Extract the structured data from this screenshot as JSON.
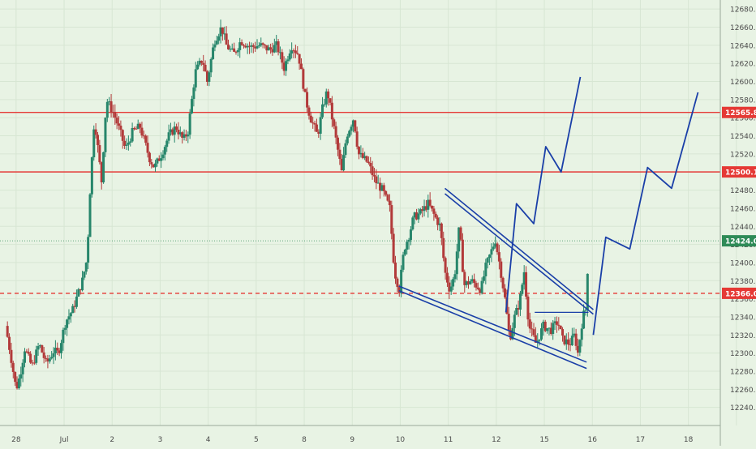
{
  "colors": {
    "background": "#e8f3e4",
    "grid": "#d7e6d3",
    "axis_text": "#4b4b4b",
    "up": "#27866b",
    "down": "#b23a3a",
    "resistance": "#e53935",
    "current": "#2e8b57",
    "drawing": "#1a3fa8"
  },
  "chart_data": {
    "type": "candlestick",
    "symbol_hint": "",
    "y_axis": {
      "min": 12220,
      "max": 12690,
      "ticks": [
        12240,
        12260,
        12280,
        12300,
        12320,
        12340,
        12360,
        12380,
        12400,
        12420,
        12440,
        12460,
        12480,
        12500,
        12520,
        12540,
        12560,
        12580,
        12600,
        12620,
        12640,
        12660,
        12680
      ],
      "tick_labels": [
        "12240.0",
        "12260.0",
        "12280.0",
        "12300.0",
        "12320.0",
        "12340.0",
        "12360.0",
        "12380.0",
        "12400.0",
        "12420.0",
        "12440.0",
        "12460.0",
        "12480.0",
        "12500.0",
        "12520.0",
        "12540.0",
        "12560.0",
        "12580.0",
        "12600.0",
        "12620.0",
        "12640.0",
        "12660.0",
        "12680.0"
      ]
    },
    "x_axis": {
      "min": 0,
      "max": 15,
      "ticks": [
        0.2,
        1.2,
        2.2,
        3.2,
        4.2,
        5.2,
        6.2,
        7.2,
        8.2,
        9.2,
        10.2,
        11.2,
        12.2,
        13.2,
        14.2,
        15.2
      ],
      "tick_labels": [
        "28",
        "Jul",
        "2",
        "3",
        "4",
        "5",
        "8",
        "9",
        "10",
        "11",
        "12",
        "15",
        "16",
        "17",
        "18",
        ""
      ]
    },
    "grid": true,
    "horizontal_levels": [
      {
        "value": 12565.8,
        "label": "12565.8",
        "style": "solid",
        "role": "resistance"
      },
      {
        "value": 12500.1,
        "label": "12500.1",
        "style": "solid",
        "role": "resistance"
      },
      {
        "value": 12366.0,
        "label": "12366.0",
        "style": "dashed",
        "role": "resistance"
      },
      {
        "value": 12424.0,
        "label": "12424.0",
        "style": "dotted",
        "role": "current"
      }
    ],
    "price_series": [
      {
        "t": 0.0,
        "p": 12330
      },
      {
        "t": 0.1,
        "p": 12300
      },
      {
        "t": 0.22,
        "p": 12260
      },
      {
        "t": 0.3,
        "p": 12275
      },
      {
        "t": 0.4,
        "p": 12305
      },
      {
        "t": 0.55,
        "p": 12285
      },
      {
        "t": 0.7,
        "p": 12310
      },
      {
        "t": 0.85,
        "p": 12288
      },
      {
        "t": 1.0,
        "p": 12302
      },
      {
        "t": 1.1,
        "p": 12300
      },
      {
        "t": 1.25,
        "p": 12335
      },
      {
        "t": 1.4,
        "p": 12348
      },
      {
        "t": 1.6,
        "p": 12380
      },
      {
        "t": 1.7,
        "p": 12405
      },
      {
        "t": 1.75,
        "p": 12470
      },
      {
        "t": 1.85,
        "p": 12560
      },
      {
        "t": 2.0,
        "p": 12490
      },
      {
        "t": 2.1,
        "p": 12580
      },
      {
        "t": 2.25,
        "p": 12565
      },
      {
        "t": 2.35,
        "p": 12550
      },
      {
        "t": 2.5,
        "p": 12525
      },
      {
        "t": 2.65,
        "p": 12545
      },
      {
        "t": 2.8,
        "p": 12550
      },
      {
        "t": 3.0,
        "p": 12515
      },
      {
        "t": 3.1,
        "p": 12505
      },
      {
        "t": 3.25,
        "p": 12520
      },
      {
        "t": 3.4,
        "p": 12540
      },
      {
        "t": 3.55,
        "p": 12550
      },
      {
        "t": 3.7,
        "p": 12535
      },
      {
        "t": 3.8,
        "p": 12545
      },
      {
        "t": 3.95,
        "p": 12610
      },
      {
        "t": 4.1,
        "p": 12625
      },
      {
        "t": 4.2,
        "p": 12600
      },
      {
        "t": 4.35,
        "p": 12645
      },
      {
        "t": 4.5,
        "p": 12660
      },
      {
        "t": 4.6,
        "p": 12640
      },
      {
        "t": 4.75,
        "p": 12630
      },
      {
        "t": 4.9,
        "p": 12645
      },
      {
        "t": 5.1,
        "p": 12638
      },
      {
        "t": 5.3,
        "p": 12640
      },
      {
        "t": 5.5,
        "p": 12635
      },
      {
        "t": 5.65,
        "p": 12640
      },
      {
        "t": 5.8,
        "p": 12615
      },
      {
        "t": 5.95,
        "p": 12640
      },
      {
        "t": 6.1,
        "p": 12630
      },
      {
        "t": 6.25,
        "p": 12580
      },
      {
        "t": 6.35,
        "p": 12560
      },
      {
        "t": 6.5,
        "p": 12540
      },
      {
        "t": 6.6,
        "p": 12570
      },
      {
        "t": 6.7,
        "p": 12590
      },
      {
        "t": 6.85,
        "p": 12545
      },
      {
        "t": 7.0,
        "p": 12500
      },
      {
        "t": 7.1,
        "p": 12540
      },
      {
        "t": 7.25,
        "p": 12560
      },
      {
        "t": 7.35,
        "p": 12520
      },
      {
        "t": 7.55,
        "p": 12510
      },
      {
        "t": 7.7,
        "p": 12490
      },
      {
        "t": 7.85,
        "p": 12480
      },
      {
        "t": 8.0,
        "p": 12460
      },
      {
        "t": 8.1,
        "p": 12390
      },
      {
        "t": 8.2,
        "p": 12370
      },
      {
        "t": 8.3,
        "p": 12415
      },
      {
        "t": 8.4,
        "p": 12430
      },
      {
        "t": 8.5,
        "p": 12450
      },
      {
        "t": 8.65,
        "p": 12455
      },
      {
        "t": 8.8,
        "p": 12465
      },
      {
        "t": 8.95,
        "p": 12450
      },
      {
        "t": 9.05,
        "p": 12440
      },
      {
        "t": 9.15,
        "p": 12390
      },
      {
        "t": 9.25,
        "p": 12370
      },
      {
        "t": 9.35,
        "p": 12385
      },
      {
        "t": 9.45,
        "p": 12440
      },
      {
        "t": 9.55,
        "p": 12375
      },
      {
        "t": 9.7,
        "p": 12380
      },
      {
        "t": 9.9,
        "p": 12370
      },
      {
        "t": 10.0,
        "p": 12395
      },
      {
        "t": 10.1,
        "p": 12410
      },
      {
        "t": 10.2,
        "p": 12425
      },
      {
        "t": 10.3,
        "p": 12395
      },
      {
        "t": 10.4,
        "p": 12360
      },
      {
        "t": 10.5,
        "p": 12315
      },
      {
        "t": 10.6,
        "p": 12340
      },
      {
        "t": 10.7,
        "p": 12355
      },
      {
        "t": 10.8,
        "p": 12390
      },
      {
        "t": 10.9,
        "p": 12330
      },
      {
        "t": 11.05,
        "p": 12310
      },
      {
        "t": 11.2,
        "p": 12330
      },
      {
        "t": 11.35,
        "p": 12325
      },
      {
        "t": 11.5,
        "p": 12335
      },
      {
        "t": 11.6,
        "p": 12315
      },
      {
        "t": 11.75,
        "p": 12310
      },
      {
        "t": 11.85,
        "p": 12320
      },
      {
        "t": 11.92,
        "p": 12300
      },
      {
        "t": 12.02,
        "p": 12340
      },
      {
        "t": 12.08,
        "p": 12348
      },
      {
        "t": 12.15,
        "p": 12424
      }
    ],
    "drawings": {
      "channel_upper": [
        [
          9.13,
          12482
        ],
        [
          12.22,
          12348
        ]
      ],
      "channel_upper_parallel": [
        [
          9.13,
          12476
        ],
        [
          12.22,
          12343
        ]
      ],
      "channel_lower": [
        [
          8.17,
          12374
        ],
        [
          12.08,
          12290
        ]
      ],
      "channel_lower_parallel": [
        [
          8.17,
          12369
        ],
        [
          12.08,
          12283
        ]
      ],
      "projection_1": [
        [
          10.4,
          12345
        ],
        [
          10.62,
          12465
        ],
        [
          10.98,
          12443
        ],
        [
          11.23,
          12528
        ],
        [
          11.55,
          12500
        ],
        [
          11.95,
          12605
        ]
      ],
      "projection_2": [
        [
          12.22,
          12320
        ],
        [
          12.48,
          12428
        ],
        [
          12.98,
          12415
        ],
        [
          13.35,
          12505
        ],
        [
          13.85,
          12482
        ],
        [
          14.4,
          12588
        ]
      ],
      "horizontal_ray": [
        [
          11.0,
          12345
        ],
        [
          12.12,
          12345
        ]
      ]
    }
  }
}
